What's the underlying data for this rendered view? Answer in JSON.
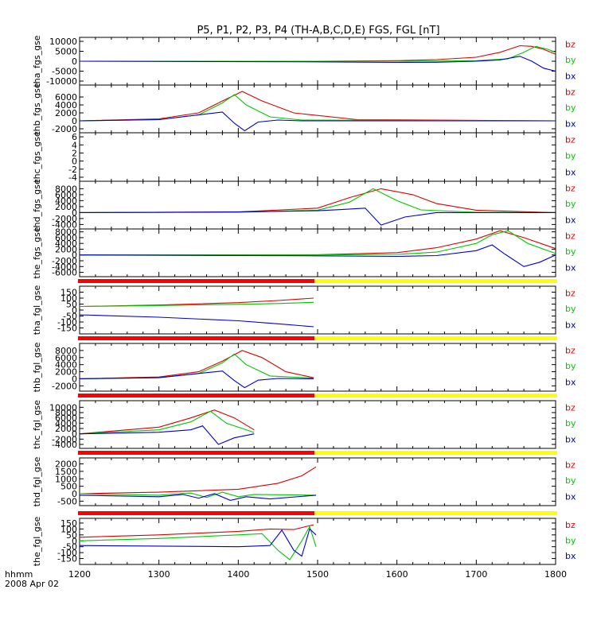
{
  "title": "P5, P1, P2, P3, P4 (TH-A,B,C,D,E) FGS, FGL [nT]",
  "xaxis": {
    "ticks": [
      "1200",
      "1300",
      "1400",
      "1500",
      "1600",
      "1700",
      "1800"
    ],
    "label_line1": "hhmm",
    "label_line2": "2008 Apr 02"
  },
  "colors": {
    "bx": "#0000d0",
    "by": "#00c800",
    "bz": "#dd0000",
    "bar_red": "#ff0000",
    "bar_yellow": "#ffff00",
    "axes": "#000000"
  },
  "chart_data": {
    "type": "line",
    "x_range": [
      1200,
      1800
    ],
    "legend_placement": "right of each panel",
    "panels": [
      {
        "ylabel": "tha_fgs_gse",
        "ylim": [
          -12000,
          12000
        ],
        "yticks": [
          "10000",
          "5000",
          "0",
          "-5000",
          "-10000"
        ],
        "series": [
          {
            "name": "bz",
            "x": [
              1200,
              1500,
              1600,
              1650,
              1700,
              1730,
              1755,
              1770,
              1785,
              1800
            ],
            "y": [
              0,
              0,
              300,
              800,
              2000,
              4500,
              7800,
              7500,
              6000,
              3500
            ]
          },
          {
            "name": "by",
            "x": [
              1200,
              1500,
              1600,
              1650,
              1700,
              1740,
              1760,
              1775,
              1790,
              1800
            ],
            "y": [
              0,
              0,
              0,
              100,
              300,
              1200,
              4500,
              7500,
              6000,
              4500
            ]
          },
          {
            "name": "bx",
            "x": [
              1200,
              1500,
              1600,
              1650,
              1700,
              1730,
              1755,
              1770,
              1785,
              1800
            ],
            "y": [
              0,
              -300,
              -600,
              -500,
              0,
              700,
              2500,
              0,
              -3500,
              -5000
            ]
          }
        ]
      },
      {
        "ylabel": "thb_fgs_gse",
        "ylim": [
          -3000,
          9000
        ],
        "yticks": [
          "6000",
          "4000",
          "2000",
          "0",
          "-2000"
        ],
        "series": [
          {
            "name": "bz",
            "x": [
              1200,
              1300,
              1350,
              1380,
              1405,
              1430,
              1470,
              1550,
              1800
            ],
            "y": [
              0,
              500,
              2000,
              5000,
              7400,
              5000,
              2000,
              300,
              0
            ]
          },
          {
            "name": "by",
            "x": [
              1200,
              1300,
              1350,
              1380,
              1395,
              1410,
              1440,
              1480,
              1800
            ],
            "y": [
              0,
              300,
              1500,
              4500,
              6600,
              4000,
              1000,
              200,
              0
            ]
          },
          {
            "name": "bx",
            "x": [
              1200,
              1300,
              1350,
              1380,
              1395,
              1408,
              1425,
              1450,
              1480,
              1800
            ],
            "y": [
              0,
              300,
              1500,
              2200,
              -600,
              -2500,
              -300,
              200,
              0,
              0
            ]
          }
        ]
      },
      {
        "ylabel": "thc_fgs_gse",
        "ylim": [
          -5,
          7
        ],
        "yticks": [
          "6",
          "4",
          "2",
          "0",
          "-2",
          "-4"
        ],
        "series": []
      },
      {
        "ylabel": "thd_fgs_gse",
        "ylim": [
          -5500,
          10500
        ],
        "yticks": [
          "8000",
          "6000",
          "4000",
          "2000",
          "0",
          "-2000",
          "-4000"
        ],
        "series": [
          {
            "name": "bz",
            "x": [
              1200,
              1400,
              1500,
              1540,
              1580,
              1620,
              1650,
              1700,
              1800
            ],
            "y": [
              0,
              200,
              1500,
              5000,
              8000,
              6000,
              3000,
              800,
              0
            ]
          },
          {
            "name": "by",
            "x": [
              1200,
              1400,
              1500,
              1540,
              1570,
              1600,
              1630,
              1700,
              1800
            ],
            "y": [
              0,
              100,
              800,
              3500,
              8000,
              4000,
              900,
              100,
              0
            ]
          },
          {
            "name": "bx",
            "x": [
              1200,
              1400,
              1500,
              1530,
              1560,
              1580,
              1610,
              1650,
              1800
            ],
            "y": [
              0,
              200,
              600,
              1000,
              1500,
              -4200,
              -1500,
              0,
              0
            ]
          }
        ]
      },
      {
        "ylabel": "the_fgs_gse",
        "ylim": [
          -7500,
          9000
        ],
        "yticks": [
          "8000",
          "6000",
          "4000",
          "2000",
          "0",
          "-2000",
          "-4000",
          "-6000"
        ],
        "series": [
          {
            "name": "bz",
            "x": [
              1200,
              1500,
              1600,
              1650,
              1700,
              1730,
              1760,
              1800
            ],
            "y": [
              0,
              100,
              800,
              2500,
              5500,
              8400,
              6000,
              2200
            ]
          },
          {
            "name": "by",
            "x": [
              1200,
              1500,
              1600,
              1650,
              1700,
              1720,
              1740,
              1765,
              1800
            ],
            "y": [
              0,
              0,
              200,
              1000,
              4000,
              7000,
              8400,
              4000,
              500
            ]
          },
          {
            "name": "bx",
            "x": [
              1200,
              1500,
              1600,
              1650,
              1700,
              1720,
              1735,
              1760,
              1780,
              1800
            ],
            "y": [
              0,
              -300,
              -500,
              -200,
              1500,
              3500,
              500,
              -4000,
              -2500,
              0
            ]
          }
        ]
      },
      {
        "ylabel": "tha_fgl_gse",
        "ylim": [
          -200,
          200
        ],
        "yticks": [
          "150",
          "100",
          "50",
          "0",
          "-50",
          "-100",
          "-150"
        ],
        "series": [
          {
            "name": "bz",
            "x": [
              1200,
              1300,
              1400,
              1450,
              1495
            ],
            "y": [
              30,
              42,
              62,
              80,
              100
            ]
          },
          {
            "name": "by",
            "x": [
              1200,
              1300,
              1400,
              1450,
              1495
            ],
            "y": [
              30,
              38,
              48,
              55,
              65
            ]
          },
          {
            "name": "bx",
            "x": [
              1200,
              1300,
              1400,
              1450,
              1495
            ],
            "y": [
              -40,
              -60,
              -90,
              -115,
              -140
            ]
          }
        ]
      },
      {
        "ylabel": "thb_fgl_gse",
        "ylim": [
          -3500,
          10000
        ],
        "yticks": [
          "8000",
          "6000",
          "4000",
          "2000",
          "0",
          "-2000"
        ],
        "series": [
          {
            "name": "bz",
            "x": [
              1200,
              1300,
              1350,
              1380,
              1405,
              1430,
              1460,
              1495
            ],
            "y": [
              0,
              500,
              2000,
              5000,
              8000,
              6000,
              2000,
              300
            ]
          },
          {
            "name": "by",
            "x": [
              1200,
              1300,
              1350,
              1380,
              1395,
              1410,
              1440,
              1495
            ],
            "y": [
              0,
              300,
              1500,
              4500,
              7000,
              4000,
              800,
              200
            ]
          },
          {
            "name": "bx",
            "x": [
              1200,
              1300,
              1350,
              1380,
              1395,
              1408,
              1425,
              1450,
              1495
            ],
            "y": [
              0,
              300,
              1500,
              2200,
              -500,
              -2500,
              -400,
              100,
              0
            ]
          }
        ]
      },
      {
        "ylabel": "thc_fgl_gse",
        "ylim": [
          -5500,
          12500
        ],
        "yticks": [
          "10000",
          "8000",
          "6000",
          "4000",
          "2000",
          "0",
          "-2000",
          "-4000"
        ],
        "series": [
          {
            "name": "bz",
            "x": [
              1200,
              1300,
              1340,
              1370,
              1395,
              1420
            ],
            "y": [
              0,
              2500,
              6000,
              9000,
              6000,
              1500
            ]
          },
          {
            "name": "by",
            "x": [
              1200,
              1300,
              1340,
              1365,
              1385,
              1420
            ],
            "y": [
              0,
              1500,
              4500,
              8500,
              4000,
              500
            ]
          },
          {
            "name": "bx",
            "x": [
              1200,
              1300,
              1340,
              1355,
              1375,
              1395,
              1420
            ],
            "y": [
              0,
              600,
              1500,
              3000,
              -4000,
              -1500,
              0
            ]
          }
        ]
      },
      {
        "ylabel": "thd_fgl_gse",
        "ylim": [
          -800,
          2400
        ],
        "yticks": [
          "2000",
          "1500",
          "1000",
          "500",
          "0",
          "-500"
        ],
        "series": [
          {
            "name": "bz",
            "x": [
              1200,
              1300,
              1400,
              1450,
              1480,
              1498
            ],
            "y": [
              0,
              100,
              300,
              700,
              1200,
              1800
            ]
          },
          {
            "name": "by",
            "x": [
              1200,
              1300,
              1340,
              1360,
              1380,
              1400,
              1420,
              1498
            ],
            "y": [
              0,
              -100,
              50,
              -250,
              100,
              -200,
              -50,
              -100
            ]
          },
          {
            "name": "bx",
            "x": [
              1200,
              1300,
              1330,
              1350,
              1370,
              1390,
              1410,
              1440,
              1498
            ],
            "y": [
              -100,
              -200,
              -50,
              -300,
              0,
              -450,
              -200,
              -350,
              -100
            ]
          }
        ]
      },
      {
        "ylabel": "the_fgl_gse",
        "ylim": [
          -200,
          190
        ],
        "yticks": [
          "150",
          "100",
          "50",
          "0",
          "-50",
          "-100",
          "-150"
        ],
        "series": [
          {
            "name": "bz",
            "x": [
              1200,
              1300,
              1400,
              1440,
              1470,
              1485,
              1495
            ],
            "y": [
              30,
              50,
              80,
              100,
              95,
              120,
              135
            ]
          },
          {
            "name": "by",
            "x": [
              1200,
              1300,
              1400,
              1430,
              1450,
              1465,
              1480,
              1490,
              1498
            ],
            "y": [
              0,
              20,
              50,
              60,
              -80,
              -160,
              0,
              120,
              -50
            ]
          },
          {
            "name": "bx",
            "x": [
              1200,
              1300,
              1400,
              1440,
              1455,
              1470,
              1480,
              1490,
              1498
            ],
            "y": [
              -40,
              -45,
              -50,
              -40,
              90,
              -80,
              -130,
              100,
              50
            ]
          }
        ]
      }
    ]
  }
}
